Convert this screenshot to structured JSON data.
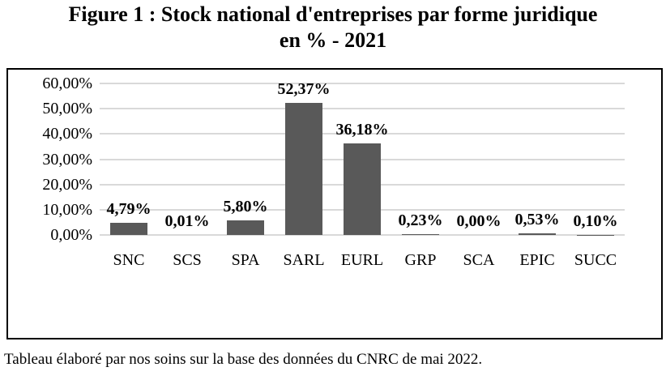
{
  "title": {
    "lines": [
      "Figure 1 : Stock national d'entreprises par forme juridique",
      "en % - 2021"
    ]
  },
  "caption": "Tableau élaboré par nos soins sur la base des données du CNRC de mai 2022.",
  "chart_data": {
    "type": "bar",
    "title": "Figure 1 : Stock national d'entreprises par forme juridique en % - 2021",
    "categories": [
      "SNC",
      "SCS",
      "SPA",
      "SARL",
      "EURL",
      "GRP",
      "SCA",
      "EPIC",
      "SUCC"
    ],
    "values": [
      4.79,
      0.01,
      5.8,
      52.37,
      36.18,
      0.23,
      0.0,
      0.53,
      0.1
    ],
    "value_labels": [
      "4,79%",
      "0,01%",
      "5,80%",
      "52,37%",
      "36,18%",
      "0,23%",
      "0,00%",
      "0,53%",
      "0,10%"
    ],
    "y_ticks": [
      "0,00%",
      "10,00%",
      "20,00%",
      "30,00%",
      "40,00%",
      "50,00%",
      "60,00%"
    ],
    "y_tick_values": [
      0,
      10,
      20,
      30,
      40,
      50,
      60
    ],
    "ylim": [
      0,
      60
    ],
    "xlabel": "",
    "ylabel": "",
    "grid": true,
    "legend": false,
    "colors": {
      "bar": "#595959",
      "gridline": "#d9d9d9",
      "frame_border": "#000000",
      "text": "#000000"
    },
    "source_note": "Tableau élaboré par nos soins sur la base des données du CNRC de mai 2022."
  }
}
